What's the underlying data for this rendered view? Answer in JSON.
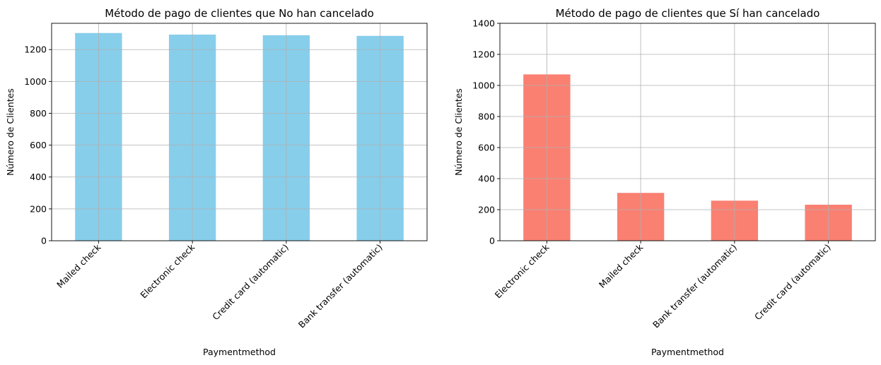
{
  "chart_data": [
    {
      "type": "bar",
      "title": "Método de pago de clientes que No han cancelado",
      "xlabel": "Paymentmethod",
      "ylabel": "Número de Clientes",
      "categories": [
        "Mailed check",
        "Electronic check",
        "Credit card (automatic)",
        "Bank transfer (automatic)"
      ],
      "values": [
        1304,
        1294,
        1290,
        1286
      ],
      "ylim": [
        0,
        1365
      ],
      "yticks": [
        0,
        200,
        400,
        600,
        800,
        1000,
        1200
      ],
      "grid": true,
      "bar_color": "#87ceeb"
    },
    {
      "type": "bar",
      "title": "Método de pago de clientes que Sí han cancelado",
      "xlabel": "Paymentmethod",
      "ylabel": "Número de Clientes",
      "categories": [
        "Electronic check",
        "Mailed check",
        "Bank transfer (automatic)",
        "Credit card (automatic)"
      ],
      "values": [
        1071,
        308,
        258,
        232
      ],
      "ylim": [
        0,
        1400
      ],
      "yticks": [
        0,
        200,
        400,
        600,
        800,
        1000,
        1200,
        1400
      ],
      "grid": true,
      "bar_color": "#fa8072"
    }
  ]
}
